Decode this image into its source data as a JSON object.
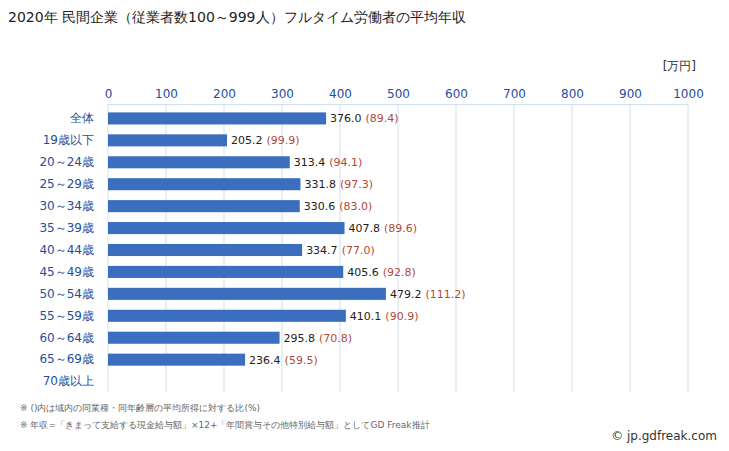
{
  "chart_data": {
    "type": "bar",
    "orientation": "horizontal",
    "title": "2020年 民間企業（従業者数100～999人）フルタイム労働者の平均年収",
    "x_label": "[万円]",
    "categories": [
      "全体",
      "19歳以下",
      "20～24歳",
      "25～29歳",
      "30～34歳",
      "35～39歳",
      "40～44歳",
      "45～49歳",
      "50～54歳",
      "55～59歳",
      "60～64歳",
      "65～69歳",
      "70歳以上"
    ],
    "values": [
      376,
      205.2,
      313.4,
      331.8,
      330.6,
      407.8,
      334.7,
      405.6,
      479.2,
      410.1,
      295.8,
      236.4,
      null
    ],
    "value_labels": [
      "376.0",
      "205.2",
      "313.4",
      "331.8",
      "330.6",
      "407.8",
      "334.7",
      "405.6",
      "479.2",
      "410.1",
      "295.8",
      "236.4",
      null
    ],
    "ratio_labels": [
      "(89.4)",
      "(99.9)",
      "(94.1)",
      "(97.3)",
      "(83.0)",
      "(89.6)",
      "(77.0)",
      "(92.8)",
      "(111.2)",
      "(90.9)",
      "(70.8)",
      "(59.5)",
      null
    ],
    "color": "#3c6ec0",
    "xlim": [
      0,
      1000
    ],
    "xticks": [
      0,
      100,
      200,
      300,
      400,
      500,
      600,
      700,
      800,
      900,
      1000
    ],
    "grid": true,
    "data_labels": true,
    "notes": [
      "※ ()内は域内の同業種・同年齢層の平均所得に対する比(%)",
      "※ 年収=「きまって支給する現金給与額」×12+「年間賞与その他特別給与額」としてGD Freak推計"
    ],
    "credit": "© jp.gdfreak.com"
  }
}
